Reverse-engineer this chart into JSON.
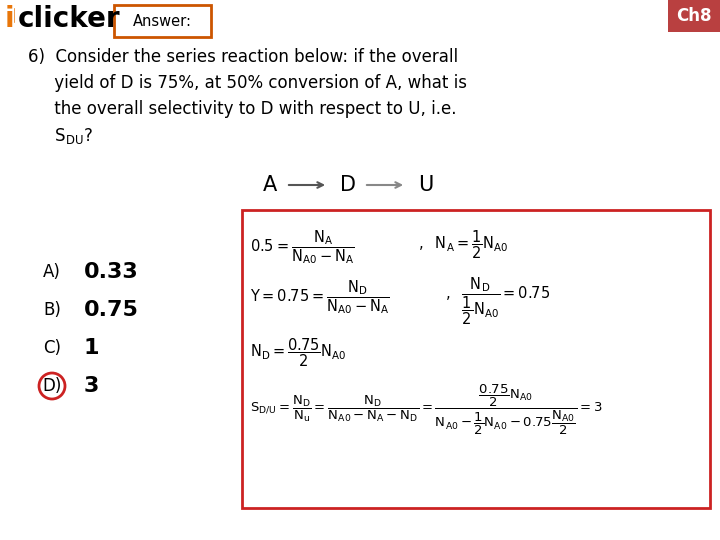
{
  "background_color": "#ffffff",
  "ch_label": "Ch8",
  "ch_bg": "#b94040",
  "answer_box_text": "Answer:",
  "choices": [
    "A)",
    "B)",
    "C)",
    "D)"
  ],
  "choice_vals": [
    "0.33",
    "0.75",
    "1",
    "3"
  ],
  "correct_choice": 3,
  "box_color": "#cc2222",
  "iclicker_i_color": "#e8760a",
  "answer_border_color": "#cc5500",
  "gray_arrow": "#888888",
  "black": "#000000"
}
